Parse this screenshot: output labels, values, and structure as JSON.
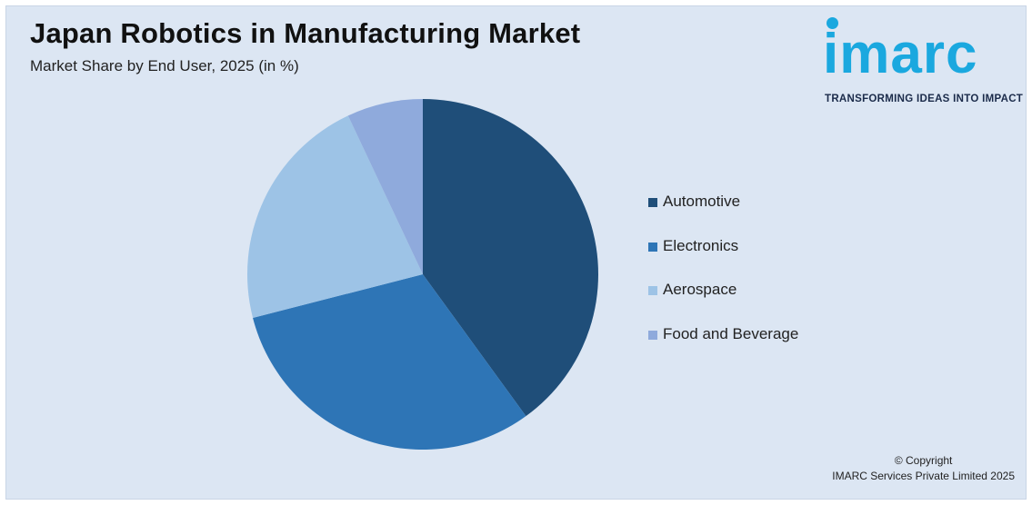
{
  "header": {
    "title": "Japan Robotics in Manufacturing Market",
    "subtitle": "Market Share by End User, 2025 (in %)"
  },
  "logo": {
    "word": "imarc",
    "tagline": "TRANSFORMING IDEAS INTO IMPACT"
  },
  "chart_data": {
    "type": "pie",
    "title": "Japan Robotics in Manufacturing Market",
    "subtitle": "Market Share by End User, 2025 (in %)",
    "categories": [
      "Automotive",
      "Electronics",
      "Aerospace",
      "Food and Beverage"
    ],
    "values": [
      40,
      31,
      22,
      7
    ],
    "colors": [
      "#1f4e79",
      "#2e75b6",
      "#9dc3e6",
      "#8faadc"
    ],
    "legend_position": "right",
    "start_angle": "12 o'clock, clockwise"
  },
  "footer": {
    "copyright_line1": "© Copyright",
    "copyright_line2": "IMARC Services Private Limited 2025"
  }
}
